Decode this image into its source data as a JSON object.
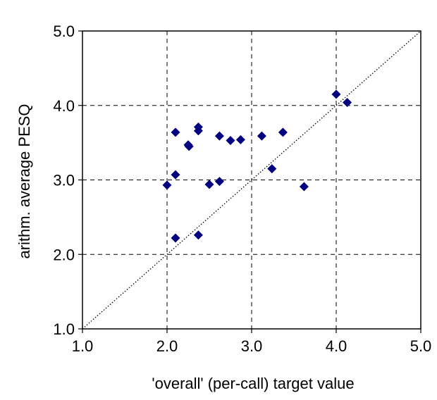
{
  "chart_data": {
    "type": "scatter",
    "title": "",
    "xlabel": "'overall' (per-call) target value",
    "ylabel": "arithm. average PESQ",
    "xlim": [
      1.0,
      5.0
    ],
    "ylim": [
      1.0,
      5.0
    ],
    "x_ticks": [
      "1.0",
      "2.0",
      "3.0",
      "4.0",
      "5.0"
    ],
    "y_ticks": [
      "1.0",
      "2.0",
      "3.0",
      "4.0",
      "5.0"
    ],
    "grid": true,
    "grid_style": "dashed",
    "reference_line": "y = x (dotted diagonal)",
    "marker": "diamond",
    "colors": {
      "marker": "#000080",
      "grid": "#000000",
      "frame": "#000000"
    },
    "points": [
      {
        "x": 2.0,
        "y": 2.93
      },
      {
        "x": 2.1,
        "y": 3.64
      },
      {
        "x": 2.1,
        "y": 3.07
      },
      {
        "x": 2.1,
        "y": 2.22
      },
      {
        "x": 2.25,
        "y": 3.47
      },
      {
        "x": 2.26,
        "y": 3.45
      },
      {
        "x": 2.37,
        "y": 3.71
      },
      {
        "x": 2.37,
        "y": 3.66
      },
      {
        "x": 2.37,
        "y": 2.26
      },
      {
        "x": 2.5,
        "y": 2.94
      },
      {
        "x": 2.62,
        "y": 3.59
      },
      {
        "x": 2.62,
        "y": 2.98
      },
      {
        "x": 2.75,
        "y": 3.53
      },
      {
        "x": 2.87,
        "y": 3.54
      },
      {
        "x": 3.12,
        "y": 3.59
      },
      {
        "x": 3.24,
        "y": 3.15
      },
      {
        "x": 3.37,
        "y": 3.64
      },
      {
        "x": 3.62,
        "y": 2.91
      },
      {
        "x": 4.0,
        "y": 4.15
      },
      {
        "x": 4.13,
        "y": 4.04
      }
    ]
  }
}
